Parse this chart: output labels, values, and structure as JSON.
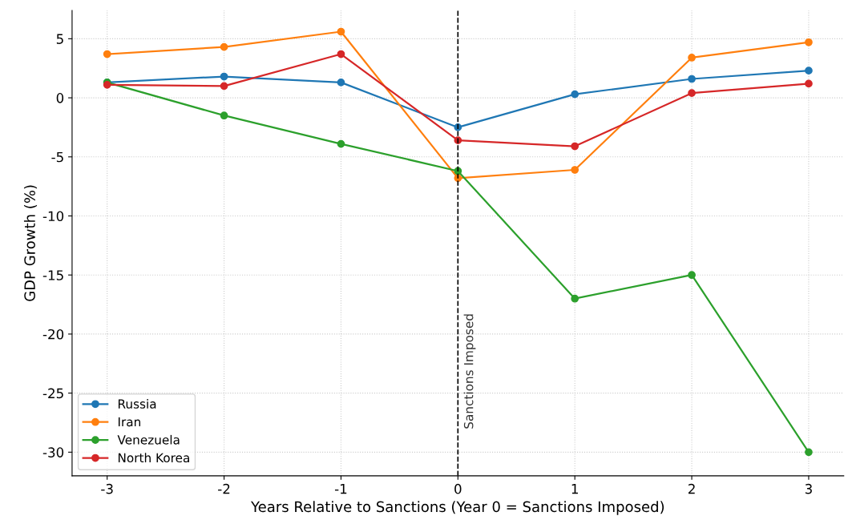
{
  "chart_data": {
    "type": "line",
    "xlabel": "Years Relative to Sanctions (Year 0 = Sanctions Imposed)",
    "ylabel": "GDP Growth (%)",
    "x": [
      -3,
      -2,
      -1,
      0,
      1,
      2,
      3
    ],
    "series": [
      {
        "name": "Russia",
        "color": "#1f77b4",
        "values": [
          1.3,
          1.8,
          1.3,
          -2.5,
          0.3,
          1.6,
          2.3
        ]
      },
      {
        "name": "Iran",
        "color": "#ff7f0e",
        "values": [
          3.7,
          4.3,
          5.6,
          -6.8,
          -6.1,
          3.4,
          4.7
        ]
      },
      {
        "name": "Venezuela",
        "color": "#2ca02c",
        "values": [
          1.3,
          -1.5,
          -3.9,
          -6.2,
          -17,
          -15,
          -30
        ]
      },
      {
        "name": "North Korea",
        "color": "#d62728",
        "values": [
          1.1,
          1.0,
          3.7,
          -3.6,
          -4.1,
          0.4,
          1.2
        ]
      }
    ],
    "xlim": [
      -3.3,
      3.3
    ],
    "ylim": [
      -32,
      7.4
    ],
    "xticks": [
      -3,
      -2,
      -1,
      0,
      1,
      2,
      3
    ],
    "yticks": [
      -30,
      -25,
      -20,
      -15,
      -10,
      -5,
      0,
      5
    ],
    "ref_lines": [
      {
        "axis": "x",
        "value": 0,
        "label": "Sanctions Imposed",
        "color": "#000000",
        "line_style": "dashed"
      }
    ],
    "grid": true,
    "legend": "bottom left",
    "marker": "circle",
    "line_style": "solid"
  }
}
